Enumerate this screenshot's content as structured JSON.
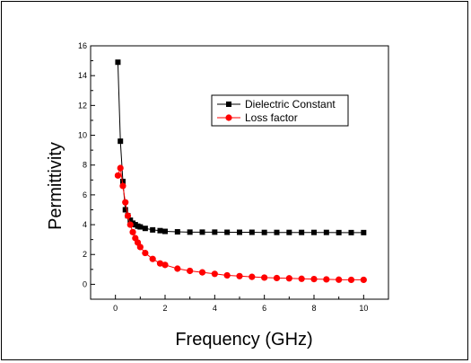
{
  "chart_data": {
    "type": "line",
    "xlabel": "Frequency (GHz)",
    "ylabel": "Permittivity",
    "xlim": [
      -1,
      11
    ],
    "ylim": [
      -1,
      16
    ],
    "x_ticks": [
      0,
      2,
      4,
      6,
      8,
      10
    ],
    "y_ticks": [
      0,
      2,
      4,
      6,
      8,
      10,
      12,
      14,
      16
    ],
    "grid": false,
    "legend_position": "upper-center",
    "series": [
      {
        "name": "Dielectric Constant",
        "color": "#000000",
        "marker": "square",
        "x": [
          0.1,
          0.2,
          0.3,
          0.4,
          0.5,
          0.6,
          0.7,
          0.8,
          0.9,
          1.0,
          1.2,
          1.5,
          1.8,
          2.0,
          2.5,
          3.0,
          3.5,
          4.0,
          4.5,
          5.0,
          5.5,
          6.0,
          6.5,
          7.0,
          7.5,
          8.0,
          8.5,
          9.0,
          9.5,
          10.0
        ],
        "y": [
          14.9,
          9.6,
          6.9,
          5.0,
          4.6,
          4.3,
          4.1,
          4.0,
          3.9,
          3.85,
          3.75,
          3.65,
          3.6,
          3.55,
          3.52,
          3.5,
          3.5,
          3.5,
          3.49,
          3.49,
          3.49,
          3.48,
          3.48,
          3.48,
          3.48,
          3.48,
          3.48,
          3.47,
          3.47,
          3.47
        ]
      },
      {
        "name": "Loss factor",
        "color": "#ff0000",
        "marker": "circle",
        "x": [
          0.1,
          0.2,
          0.3,
          0.4,
          0.5,
          0.6,
          0.7,
          0.8,
          0.9,
          1.0,
          1.2,
          1.5,
          1.8,
          2.0,
          2.5,
          3.0,
          3.5,
          4.0,
          4.5,
          5.0,
          5.5,
          6.0,
          6.5,
          7.0,
          7.5,
          8.0,
          8.5,
          9.0,
          9.5,
          10.0
        ],
        "y": [
          7.3,
          7.8,
          6.6,
          5.5,
          4.6,
          4.0,
          3.5,
          3.1,
          2.8,
          2.5,
          2.1,
          1.7,
          1.4,
          1.3,
          1.05,
          0.9,
          0.8,
          0.7,
          0.6,
          0.55,
          0.5,
          0.45,
          0.42,
          0.4,
          0.37,
          0.35,
          0.33,
          0.31,
          0.3,
          0.3
        ]
      }
    ]
  }
}
